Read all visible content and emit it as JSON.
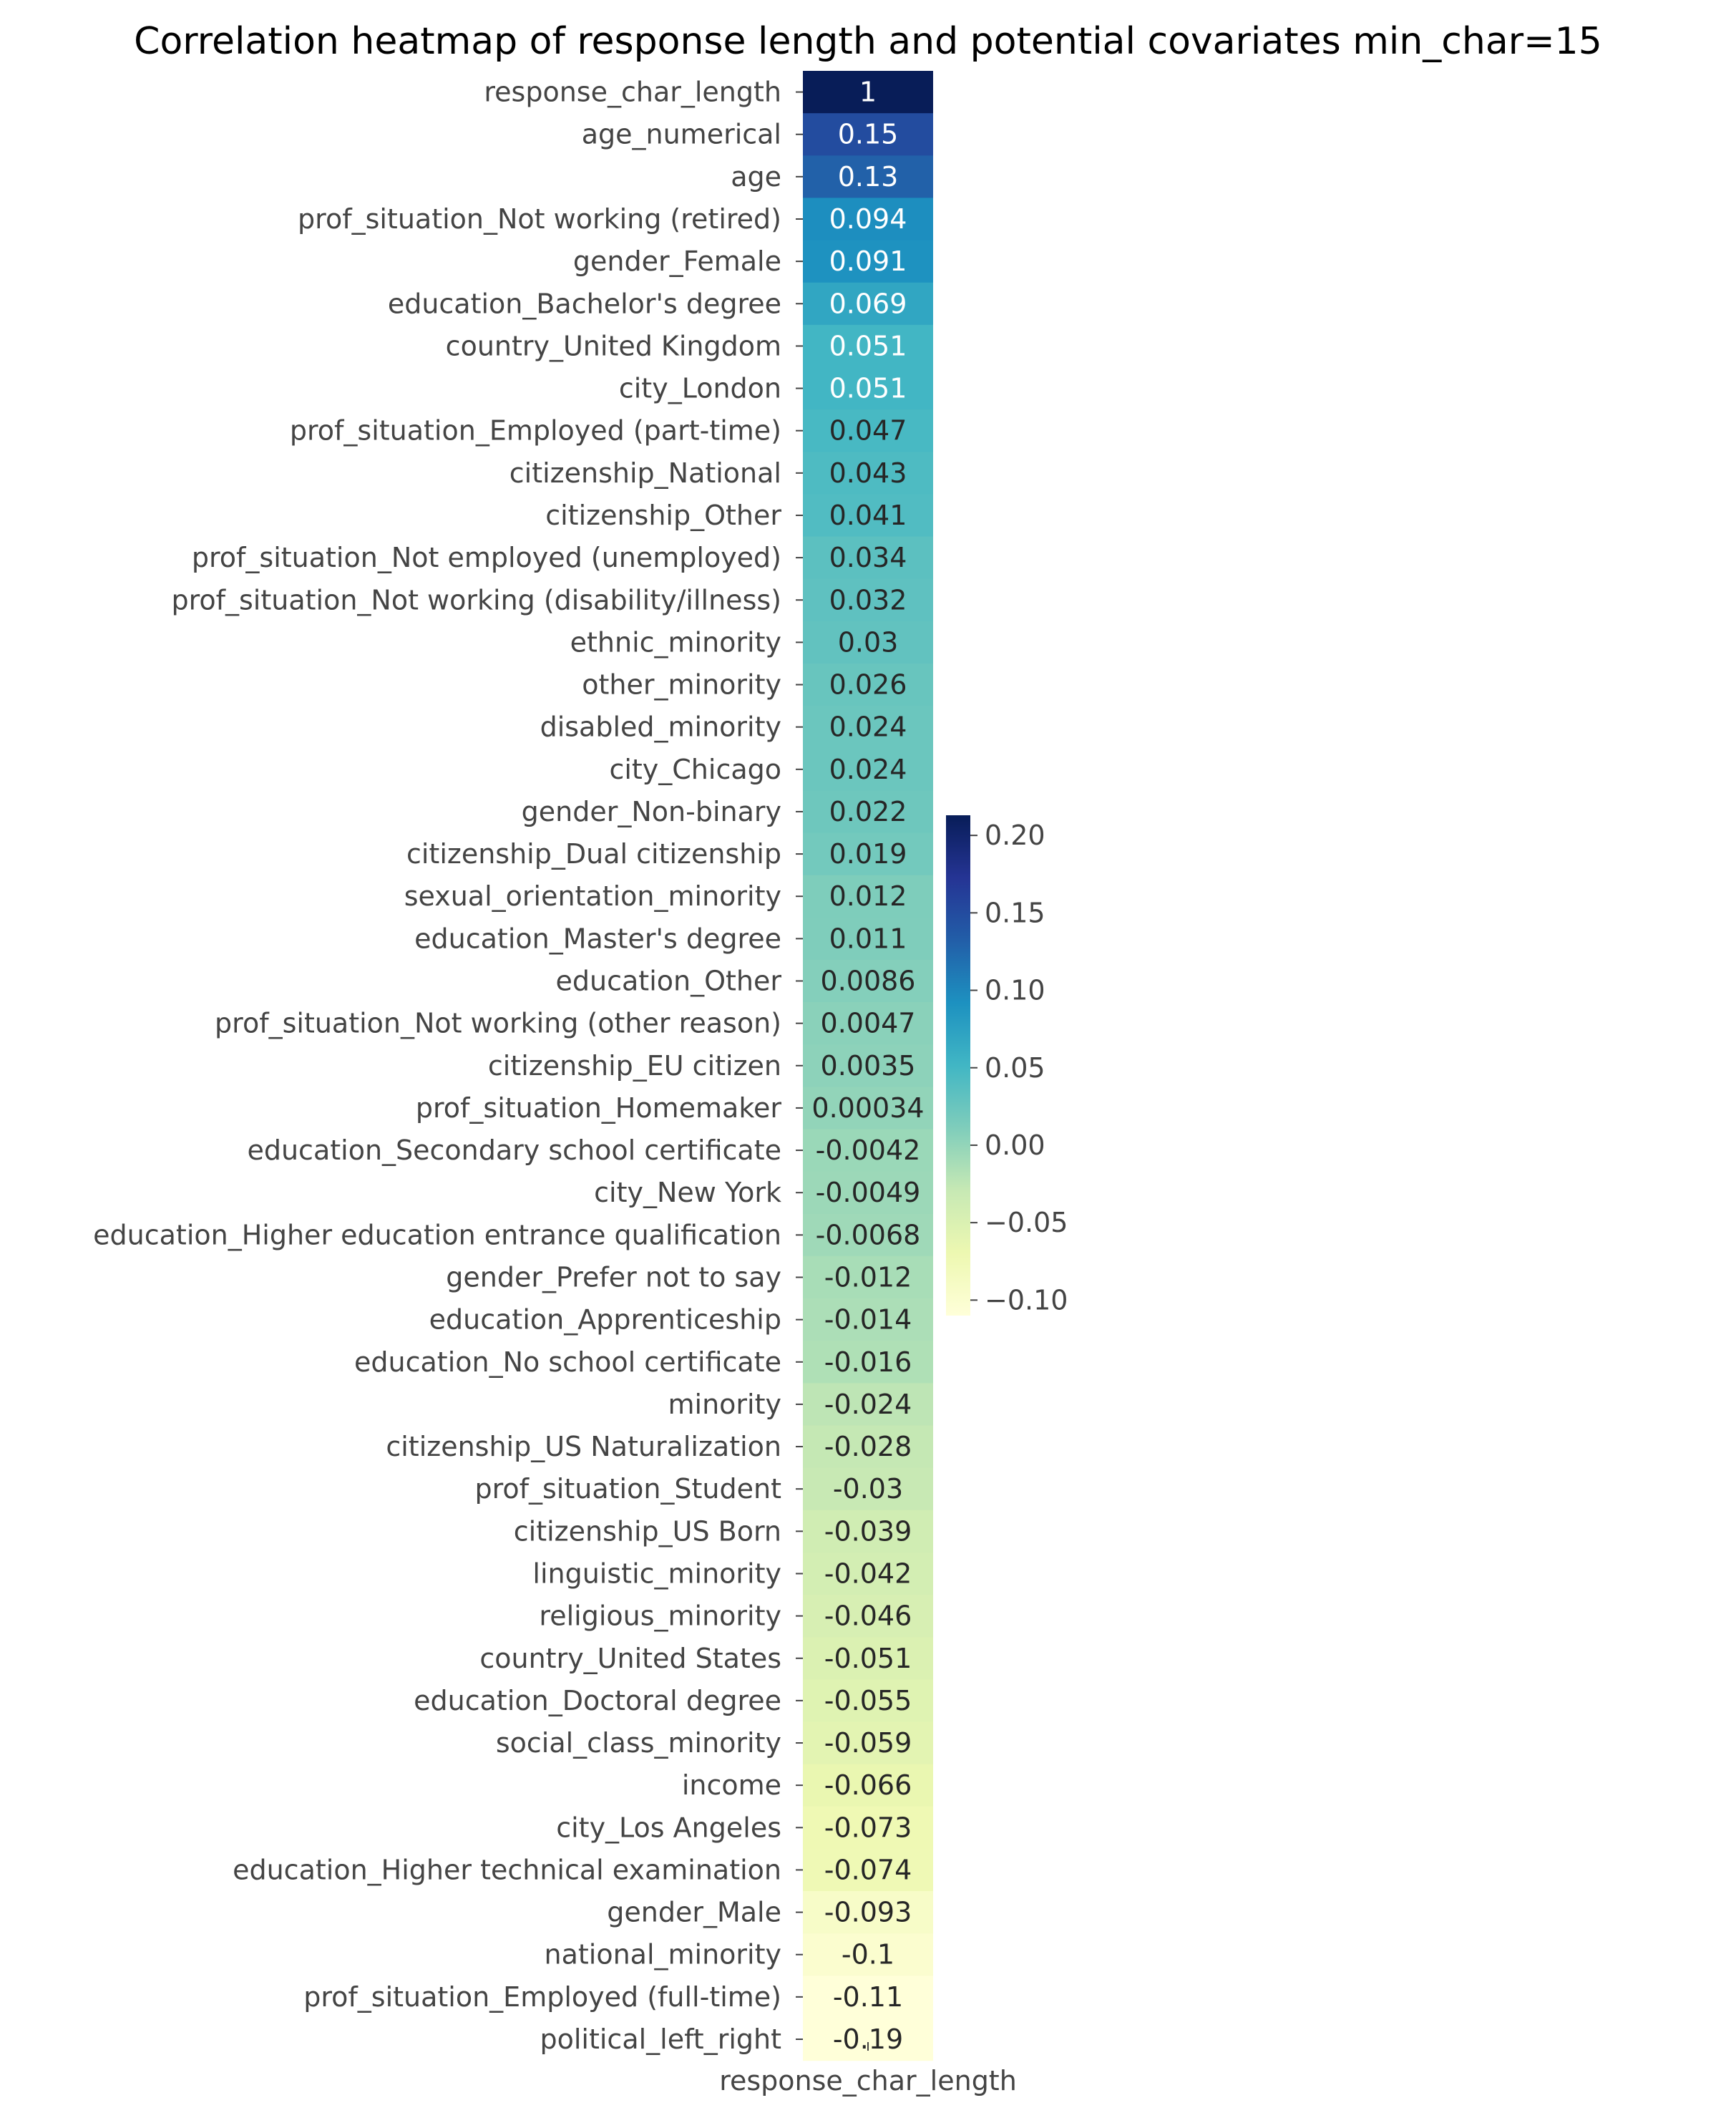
{
  "chart_data": {
    "type": "heatmap",
    "title": "Correlation heatmap of response length and potential covariates min_char=15",
    "column": "response_char_length",
    "colormap": "YlGnBu",
    "color_range": [
      -0.11,
      0.213
    ],
    "colorbar_ticks": [
      "0.20",
      "0.15",
      "0.10",
      "0.05",
      "0.00",
      "−0.05",
      "−0.10"
    ],
    "colorbar_tick_values": [
      0.2,
      0.15,
      0.1,
      0.05,
      0.0,
      -0.05,
      -0.1
    ],
    "rows": [
      {
        "label": "response_char_length",
        "value": 1,
        "text": "1"
      },
      {
        "label": "age_numerical",
        "value": 0.15,
        "text": "0.15"
      },
      {
        "label": "age",
        "value": 0.13,
        "text": "0.13"
      },
      {
        "label": "prof_situation_Not working (retired)",
        "value": 0.094,
        "text": "0.094"
      },
      {
        "label": "gender_Female",
        "value": 0.091,
        "text": "0.091"
      },
      {
        "label": "education_Bachelor's degree",
        "value": 0.069,
        "text": "0.069"
      },
      {
        "label": "country_United Kingdom",
        "value": 0.051,
        "text": "0.051"
      },
      {
        "label": "city_London",
        "value": 0.051,
        "text": "0.051"
      },
      {
        "label": "prof_situation_Employed (part-time)",
        "value": 0.047,
        "text": "0.047"
      },
      {
        "label": "citizenship_National",
        "value": 0.043,
        "text": "0.043"
      },
      {
        "label": "citizenship_Other",
        "value": 0.041,
        "text": "0.041"
      },
      {
        "label": "prof_situation_Not employed (unemployed)",
        "value": 0.034,
        "text": "0.034"
      },
      {
        "label": "prof_situation_Not working (disability/illness)",
        "value": 0.032,
        "text": "0.032"
      },
      {
        "label": "ethnic_minority",
        "value": 0.03,
        "text": "0.03"
      },
      {
        "label": "other_minority",
        "value": 0.026,
        "text": "0.026"
      },
      {
        "label": "disabled_minority",
        "value": 0.024,
        "text": "0.024"
      },
      {
        "label": "city_Chicago",
        "value": 0.024,
        "text": "0.024"
      },
      {
        "label": "gender_Non-binary",
        "value": 0.022,
        "text": "0.022"
      },
      {
        "label": "citizenship_Dual citizenship",
        "value": 0.019,
        "text": "0.019"
      },
      {
        "label": "sexual_orientation_minority",
        "value": 0.012,
        "text": "0.012"
      },
      {
        "label": "education_Master's degree",
        "value": 0.011,
        "text": "0.011"
      },
      {
        "label": "education_Other",
        "value": 0.0086,
        "text": "0.0086"
      },
      {
        "label": "prof_situation_Not working (other reason)",
        "value": 0.0047,
        "text": "0.0047"
      },
      {
        "label": "citizenship_EU citizen",
        "value": 0.0035,
        "text": "0.0035"
      },
      {
        "label": "prof_situation_Homemaker",
        "value": 0.00034,
        "text": "0.00034"
      },
      {
        "label": "education_Secondary school certificate",
        "value": -0.0042,
        "text": "-0.0042"
      },
      {
        "label": "city_New York",
        "value": -0.0049,
        "text": "-0.0049"
      },
      {
        "label": "education_Higher education entrance qualification",
        "value": -0.0068,
        "text": "-0.0068"
      },
      {
        "label": "gender_Prefer not to say",
        "value": -0.012,
        "text": "-0.012"
      },
      {
        "label": "education_Apprenticeship",
        "value": -0.014,
        "text": "-0.014"
      },
      {
        "label": "education_No school certificate",
        "value": -0.016,
        "text": "-0.016"
      },
      {
        "label": "minority",
        "value": -0.024,
        "text": "-0.024"
      },
      {
        "label": "citizenship_US Naturalization",
        "value": -0.028,
        "text": "-0.028"
      },
      {
        "label": "prof_situation_Student",
        "value": -0.03,
        "text": "-0.03"
      },
      {
        "label": "citizenship_US Born",
        "value": -0.039,
        "text": "-0.039"
      },
      {
        "label": "linguistic_minority",
        "value": -0.042,
        "text": "-0.042"
      },
      {
        "label": "religious_minority",
        "value": -0.046,
        "text": "-0.046"
      },
      {
        "label": "country_United States",
        "value": -0.051,
        "text": "-0.051"
      },
      {
        "label": "education_Doctoral degree",
        "value": -0.055,
        "text": "-0.055"
      },
      {
        "label": "social_class_minority",
        "value": -0.059,
        "text": "-0.059"
      },
      {
        "label": "income",
        "value": -0.066,
        "text": "-0.066"
      },
      {
        "label": "city_Los Angeles",
        "value": -0.073,
        "text": "-0.073"
      },
      {
        "label": "education_Higher technical examination",
        "value": -0.074,
        "text": "-0.074"
      },
      {
        "label": "gender_Male",
        "value": -0.093,
        "text": "-0.093"
      },
      {
        "label": "national_minority",
        "value": -0.1,
        "text": "-0.1"
      },
      {
        "label": "prof_situation_Employed (full-time)",
        "value": -0.11,
        "text": "-0.11"
      },
      {
        "label": "political_left_right",
        "value": -0.19,
        "text": "-0.19"
      }
    ]
  }
}
